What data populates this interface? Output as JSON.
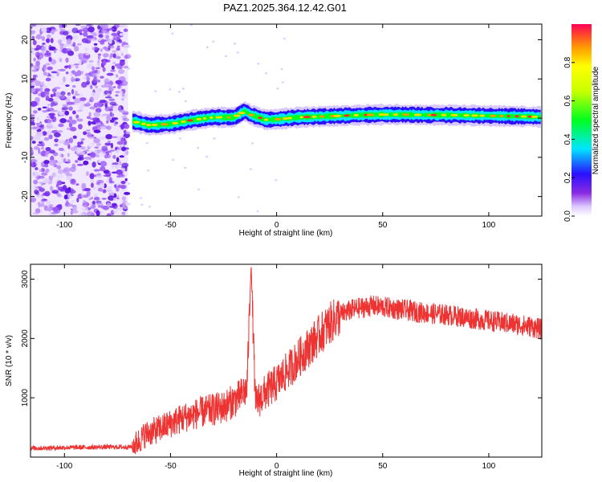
{
  "title": "PAZ1.2025.364.12.42.G01",
  "chart_data": [
    {
      "type": "heatmap",
      "xlabel": "Height of straight line (km)",
      "ylabel": "Frequency (Hz)",
      "xlim": [
        -116,
        125
      ],
      "ylim": [
        -25,
        24
      ],
      "xticks": [
        -100,
        -50,
        0,
        50,
        100
      ],
      "yticks": [
        -20,
        -10,
        0,
        10,
        20
      ],
      "colorbar": {
        "label": "Normalized spectral amplitude",
        "range": [
          0,
          1
        ],
        "ticks": [
          "0.0",
          "0.2",
          "0.4",
          "0.6",
          "0.8"
        ]
      },
      "noise_region": {
        "x_from": -116,
        "x_to": -70,
        "y_from": -25,
        "y_to": 24
      },
      "ridge": {
        "x": [
          -68,
          -60,
          -50,
          -40,
          -30,
          -20,
          -15,
          -12,
          -5,
          0,
          10,
          20,
          30,
          40,
          50,
          60,
          70,
          80,
          90,
          100,
          110,
          120,
          125
        ],
        "freq": [
          -0.8,
          -1.8,
          -1.5,
          -0.5,
          0.2,
          0.2,
          1.8,
          0.8,
          -0.4,
          -0.3,
          0.2,
          0.4,
          0.6,
          0.8,
          0.9,
          0.9,
          0.8,
          0.8,
          0.7,
          0.6,
          0.5,
          0.4,
          0.3
        ]
      }
    },
    {
      "type": "line",
      "xlabel": "Height of straight line (km)",
      "ylabel": "SNR (10 * v/v)",
      "xlim": [
        -116,
        125
      ],
      "ylim": [
        0,
        3250
      ],
      "xticks": [
        -100,
        -50,
        0,
        50,
        100
      ],
      "yticks": [
        1000,
        2000,
        3000
      ],
      "series": [
        {
          "name": "SNR",
          "color": "#ee3333",
          "x": [
            -116,
            -100,
            -80,
            -68,
            -65,
            -62,
            -55,
            -45,
            -35,
            -25,
            -18,
            -14,
            -12,
            -10,
            -5,
            0,
            5,
            10,
            15,
            20,
            25,
            30,
            35,
            40,
            45,
            50,
            60,
            70,
            80,
            90,
            100,
            110,
            120,
            125
          ],
          "y": [
            150,
            160,
            170,
            170,
            270,
            380,
            480,
            650,
            760,
            840,
            1000,
            1150,
            3250,
            900,
            1100,
            1250,
            1450,
            1650,
            1850,
            2050,
            2250,
            2400,
            2480,
            2520,
            2550,
            2530,
            2480,
            2430,
            2400,
            2350,
            2300,
            2250,
            2200,
            2150
          ]
        }
      ]
    }
  ]
}
